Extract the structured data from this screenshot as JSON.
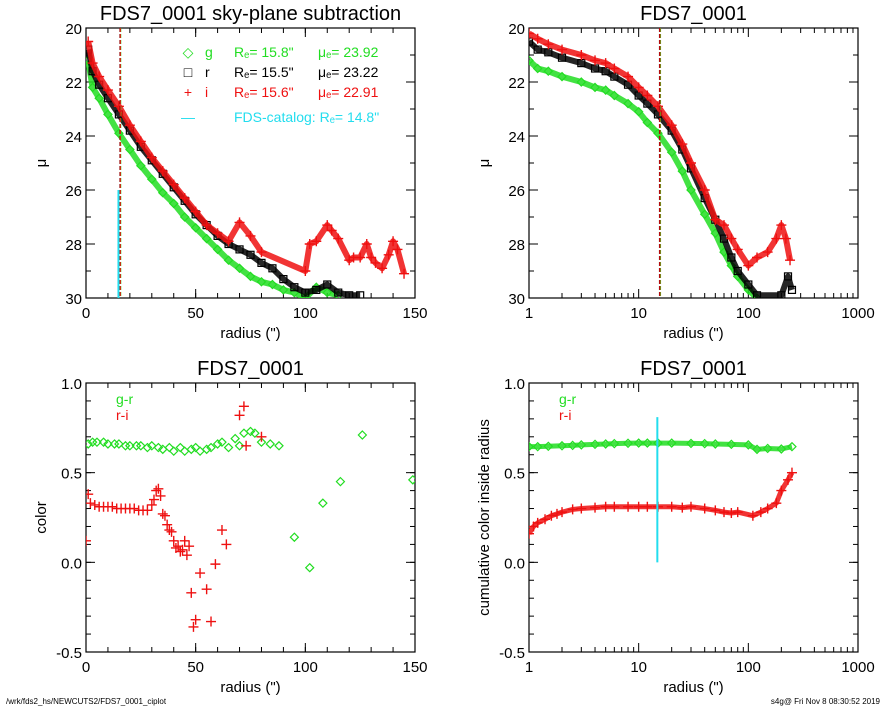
{
  "footer": {
    "left": "/wrk/fds2_hs/NEWCUTS2/FDS7_0001_ciplot",
    "right": "s4g@  Fri Nov  8 08:30:52 2019"
  },
  "colors": {
    "g": "#22dd22",
    "r": "#000000",
    "i": "#ee1111",
    "catalog": "#22ddee"
  },
  "chart_data": [
    {
      "id": "p1",
      "type": "scatter",
      "title": "FDS7_0001 sky-plane subtraction",
      "xlabel": "radius (\")",
      "ylabel": "μ",
      "xscale": "linear",
      "xlim": [
        0,
        150
      ],
      "ylim": [
        30,
        20
      ],
      "xticks": [
        0,
        50,
        100,
        150
      ],
      "xtick_labels": [
        "0",
        "50",
        "100",
        "150"
      ],
      "yticks": [
        20,
        22,
        24,
        26,
        28,
        30
      ],
      "ytick_labels": [
        "20",
        "22",
        "24",
        "26",
        "28",
        "30"
      ],
      "vlines": [
        {
          "x": 15.8,
          "color": "g",
          "y": [
            20,
            30
          ]
        },
        {
          "x": 15.5,
          "color": "r",
          "y": [
            20,
            30
          ]
        },
        {
          "x": 15.6,
          "color": "i",
          "y": [
            20,
            30
          ]
        },
        {
          "x": 14.8,
          "color": "catalog",
          "y": [
            26,
            30
          ]
        }
      ],
      "legend": [
        {
          "marker": "◇",
          "band": "g",
          "color": "g",
          "re": "Rₑ=  15.8\"",
          "mue": "μₑ= 23.92"
        },
        {
          "marker": "□",
          "band": "r",
          "color": "r",
          "re": "Rₑ=  15.5\"",
          "mue": "μₑ= 23.22"
        },
        {
          "marker": "+",
          "band": "i",
          "color": "i",
          "re": "Rₑ=  15.6\"",
          "mue": "μₑ= 22.91"
        },
        {
          "marker": "—",
          "band": "",
          "color": "catalog",
          "re": "FDS-catalog: Rₑ=  14.8\"",
          "mue": ""
        }
      ],
      "series": [
        {
          "name": "g",
          "marker": "diamond",
          "color": "g",
          "x": [
            1,
            3,
            6,
            10,
            15,
            20,
            25,
            30,
            35,
            40,
            45,
            50,
            55,
            60,
            65,
            70,
            75,
            80,
            85,
            90,
            95,
            100,
            105,
            110,
            115
          ],
          "y": [
            21.2,
            22.2,
            22.6,
            23.2,
            23.9,
            24.5,
            25.1,
            25.6,
            26.1,
            26.5,
            27.0,
            27.4,
            27.8,
            28.2,
            28.6,
            28.9,
            29.2,
            29.4,
            29.5,
            29.7,
            29.8,
            30.0,
            29.6,
            29.8,
            29.9
          ]
        },
        {
          "name": "r",
          "marker": "square",
          "color": "r",
          "x": [
            1,
            3,
            6,
            10,
            15,
            20,
            25,
            30,
            35,
            40,
            45,
            50,
            55,
            60,
            65,
            70,
            75,
            80,
            85,
            90,
            95,
            100,
            105,
            110,
            115,
            120,
            125
          ],
          "y": [
            20.8,
            21.6,
            22.1,
            22.6,
            23.2,
            23.8,
            24.4,
            24.9,
            25.4,
            25.9,
            26.4,
            26.9,
            27.3,
            27.7,
            28.0,
            28.2,
            28.4,
            28.7,
            28.9,
            29.3,
            29.6,
            29.8,
            29.7,
            29.5,
            29.8,
            29.9,
            29.9
          ]
        },
        {
          "name": "i",
          "marker": "plus",
          "color": "i",
          "x": [
            1,
            3,
            6,
            10,
            15,
            20,
            25,
            30,
            35,
            40,
            45,
            50,
            55,
            60,
            65,
            70,
            75,
            80,
            100,
            102,
            105,
            110,
            112,
            115,
            120,
            122,
            125,
            128,
            130,
            132,
            135,
            138,
            140,
            142,
            145
          ],
          "y": [
            20.5,
            21.3,
            21.8,
            22.3,
            22.9,
            23.6,
            24.2,
            24.8,
            25.3,
            25.8,
            26.3,
            26.8,
            27.3,
            27.6,
            27.9,
            27.2,
            27.7,
            28.3,
            29.0,
            28.0,
            27.9,
            27.3,
            27.5,
            27.8,
            28.6,
            28.5,
            28.5,
            28.0,
            28.5,
            28.7,
            28.9,
            28.4,
            27.9,
            28.2,
            29.1
          ]
        }
      ]
    },
    {
      "id": "p2",
      "type": "scatter",
      "title": "FDS7_0001",
      "xlabel": "radius (\")",
      "ylabel": "μ",
      "xscale": "log",
      "xlim": [
        1,
        1000
      ],
      "ylim": [
        30,
        20
      ],
      "xticks": [
        1,
        10,
        100,
        1000
      ],
      "xtick_labels": [
        "1",
        "10",
        "100",
        "1000"
      ],
      "yticks": [
        20,
        22,
        24,
        26,
        28,
        30
      ],
      "ytick_labels": [
        "20",
        "22",
        "24",
        "26",
        "28",
        "30"
      ],
      "vlines": [
        {
          "x": 15.8,
          "color": "g",
          "y": [
            20,
            30
          ]
        },
        {
          "x": 15.5,
          "color": "r",
          "y": [
            20,
            30
          ]
        },
        {
          "x": 15.6,
          "color": "i",
          "y": [
            20,
            30
          ]
        }
      ],
      "series": [
        {
          "name": "g",
          "marker": "diamond",
          "color": "g",
          "x": [
            1,
            1.2,
            1.5,
            2,
            3,
            4,
            5,
            6,
            8,
            10,
            12,
            15,
            20,
            25,
            30,
            40,
            50,
            60,
            70,
            80,
            100,
            120
          ],
          "y": [
            21.2,
            21.5,
            21.6,
            21.8,
            22.0,
            22.2,
            22.3,
            22.5,
            22.8,
            23.1,
            23.5,
            23.9,
            24.6,
            25.3,
            26.0,
            26.9,
            27.6,
            28.3,
            28.8,
            29.2,
            29.7,
            30.0
          ]
        },
        {
          "name": "r",
          "marker": "square",
          "color": "r",
          "x": [
            1,
            1.2,
            1.5,
            2,
            3,
            4,
            5,
            6,
            8,
            10,
            12,
            15,
            20,
            25,
            30,
            40,
            50,
            60,
            70,
            80,
            100,
            120,
            200,
            230,
            250
          ],
          "y": [
            20.5,
            20.8,
            20.9,
            21.1,
            21.3,
            21.5,
            21.6,
            21.8,
            22.1,
            22.5,
            22.8,
            23.2,
            23.8,
            24.5,
            25.2,
            26.3,
            27.1,
            27.8,
            28.5,
            29.0,
            29.5,
            29.9,
            29.9,
            29.2,
            29.7
          ]
        },
        {
          "name": "i",
          "marker": "plus",
          "color": "i",
          "x": [
            1,
            1.2,
            1.5,
            2,
            3,
            4,
            5,
            6,
            8,
            10,
            12,
            15,
            20,
            25,
            30,
            40,
            50,
            60,
            70,
            80,
            100,
            120,
            150,
            180,
            200,
            220,
            240
          ],
          "y": [
            20.2,
            20.4,
            20.6,
            20.8,
            21.0,
            21.2,
            21.3,
            21.5,
            21.8,
            22.2,
            22.5,
            22.9,
            23.6,
            24.3,
            25.0,
            26.0,
            27.1,
            27.3,
            27.8,
            28.2,
            28.8,
            28.5,
            28.3,
            27.8,
            27.3,
            27.8,
            28.6
          ]
        }
      ]
    },
    {
      "id": "p3",
      "type": "scatter",
      "title": "FDS7_0001",
      "xlabel": "radius (\")",
      "ylabel": "color",
      "xscale": "linear",
      "xlim": [
        0,
        150
      ],
      "ylim": [
        -0.5,
        1.0
      ],
      "xticks": [
        0,
        50,
        100,
        150
      ],
      "xtick_labels": [
        "0",
        "50",
        "100",
        "150"
      ],
      "yticks": [
        -0.5,
        0.0,
        0.5,
        1.0
      ],
      "ytick_labels": [
        "-0.5",
        "0.0",
        "0.5",
        "1.0"
      ],
      "legend": [
        {
          "label": "g-r",
          "color": "g"
        },
        {
          "label": "r-i",
          "color": "i"
        }
      ],
      "series": [
        {
          "name": "g-r",
          "marker": "diamond",
          "color": "g",
          "x": [
            1,
            3,
            5,
            8,
            10,
            13,
            15,
            18,
            20,
            23,
            25,
            28,
            30,
            33,
            35,
            38,
            40,
            43,
            45,
            48,
            50,
            52,
            55,
            57,
            60,
            62,
            65,
            68,
            70,
            72,
            75,
            77,
            80,
            84,
            88,
            95,
            102,
            108,
            116,
            126,
            149
          ],
          "y": [
            0.66,
            0.67,
            0.67,
            0.67,
            0.66,
            0.66,
            0.66,
            0.65,
            0.65,
            0.65,
            0.65,
            0.64,
            0.65,
            0.64,
            0.63,
            0.64,
            0.62,
            0.64,
            0.62,
            0.63,
            0.64,
            0.62,
            0.63,
            0.64,
            0.66,
            0.67,
            0.64,
            0.69,
            0.65,
            0.72,
            0.73,
            0.72,
            0.67,
            0.66,
            0.65,
            0.14,
            -0.03,
            0.33,
            0.45,
            0.71,
            0.46
          ]
        },
        {
          "name": "r-i",
          "marker": "plus",
          "color": "i",
          "x": [
            0,
            1,
            2,
            4,
            6,
            8,
            10,
            12,
            14,
            16,
            18,
            20,
            22,
            24,
            26,
            28,
            30,
            31,
            32,
            33,
            34,
            35,
            36,
            37,
            38,
            39,
            40,
            41,
            42,
            43,
            44,
            45,
            46,
            47,
            48,
            49,
            50,
            52,
            55,
            57,
            59,
            62,
            64,
            70,
            72,
            73,
            80
          ],
          "y": [
            0.12,
            0.38,
            0.33,
            0.32,
            0.31,
            0.31,
            0.31,
            0.31,
            0.3,
            0.3,
            0.3,
            0.3,
            0.3,
            0.29,
            0.29,
            0.29,
            0.32,
            0.35,
            0.4,
            0.41,
            0.37,
            0.27,
            0.26,
            0.21,
            0.18,
            0.17,
            0.12,
            0.08,
            0.09,
            0.06,
            0.07,
            0.12,
            0.04,
            0.09,
            -0.17,
            -0.36,
            -0.32,
            -0.06,
            -0.15,
            -0.33,
            -0.01,
            0.18,
            0.1,
            0.82,
            0.87,
            0.65,
            0.7
          ]
        }
      ]
    },
    {
      "id": "p4",
      "type": "scatter",
      "title": "FDS7_0001",
      "xlabel": "radius (\")",
      "ylabel": "cumulative color inside radius",
      "xscale": "log",
      "xlim": [
        1,
        1000
      ],
      "ylim": [
        -0.5,
        1.0
      ],
      "xticks": [
        1,
        10,
        100,
        1000
      ],
      "xtick_labels": [
        "1",
        "10",
        "100",
        "1000"
      ],
      "yticks": [
        -0.5,
        0.0,
        0.5,
        1.0
      ],
      "ytick_labels": [
        "-0.5",
        "0.0",
        "0.5",
        "1.0"
      ],
      "legend": [
        {
          "label": "g-r",
          "color": "g"
        },
        {
          "label": "r-i",
          "color": "i"
        }
      ],
      "vlines": [
        {
          "x": 14.8,
          "color": "catalog",
          "y": [
            0.0,
            0.81
          ]
        }
      ],
      "series": [
        {
          "name": "g-r",
          "marker": "diamond",
          "color": "g",
          "x": [
            1,
            1.2,
            1.5,
            2,
            2.5,
            3,
            4,
            5,
            6,
            8,
            10,
            12,
            15,
            20,
            30,
            40,
            50,
            70,
            100,
            120,
            150,
            200,
            250
          ],
          "y": [
            0.645,
            0.645,
            0.647,
            0.65,
            0.652,
            0.655,
            0.658,
            0.66,
            0.662,
            0.664,
            0.665,
            0.665,
            0.665,
            0.665,
            0.663,
            0.662,
            0.66,
            0.658,
            0.655,
            0.63,
            0.635,
            0.632,
            0.645
          ]
        },
        {
          "name": "r-i",
          "marker": "plus",
          "color": "i",
          "x": [
            1,
            1.1,
            1.2,
            1.4,
            1.6,
            1.8,
            2,
            2.5,
            3,
            4,
            5,
            6,
            8,
            10,
            12,
            15,
            20,
            25,
            30,
            40,
            50,
            60,
            70,
            80,
            110,
            130,
            150,
            180,
            200,
            230,
            250
          ],
          "y": [
            0.16,
            0.2,
            0.22,
            0.24,
            0.26,
            0.27,
            0.28,
            0.295,
            0.3,
            0.305,
            0.31,
            0.31,
            0.31,
            0.31,
            0.31,
            0.31,
            0.31,
            0.305,
            0.31,
            0.3,
            0.29,
            0.28,
            0.275,
            0.28,
            0.26,
            0.28,
            0.3,
            0.33,
            0.4,
            0.46,
            0.5
          ]
        }
      ]
    }
  ]
}
